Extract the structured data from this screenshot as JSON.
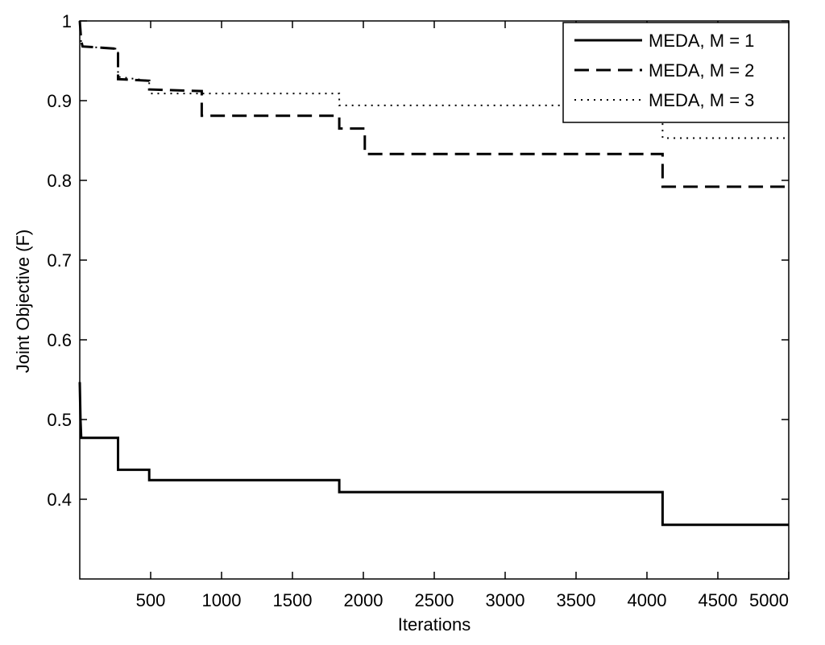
{
  "chart_data": {
    "type": "line",
    "title": "",
    "xlabel": "Iterations",
    "ylabel": "Joint Objective (F)",
    "xlim": [
      0,
      5000
    ],
    "ylim": [
      0.3,
      1.0
    ],
    "x_ticks": [
      500,
      1000,
      1500,
      2000,
      2500,
      3000,
      3500,
      4000,
      4500,
      5000
    ],
    "y_ticks": [
      0.4,
      0.5,
      0.6,
      0.7,
      0.8,
      0.9,
      1
    ],
    "x_tick_labels": [
      "500",
      "1000",
      "1500",
      "2000",
      "2500",
      "3000",
      "3500",
      "4000",
      "4500",
      "5000"
    ],
    "y_tick_labels": [
      "0.4",
      "0.5",
      "0.6",
      "0.7",
      "0.8",
      "0.9",
      "1"
    ],
    "grid": false,
    "legend_position": "top-right",
    "series": [
      {
        "name": "MEDA, M = 1",
        "style": "solid",
        "color": "#000000",
        "x": [
          0,
          5,
          10,
          270,
          270,
          490,
          490,
          1830,
          1830,
          4110,
          4110,
          5000
        ],
        "y": [
          0.547,
          0.5,
          0.477,
          0.477,
          0.437,
          0.437,
          0.424,
          0.424,
          0.409,
          0.409,
          0.368,
          0.368
        ]
      },
      {
        "name": "MEDA, M = 2",
        "style": "dashed",
        "color": "#000000",
        "x": [
          0,
          10,
          20,
          270,
          270,
          490,
          490,
          860,
          860,
          1830,
          1830,
          2010,
          2010,
          4110,
          4110,
          5000
        ],
        "y": [
          1.0,
          0.975,
          0.968,
          0.965,
          0.927,
          0.925,
          0.914,
          0.912,
          0.881,
          0.881,
          0.865,
          0.865,
          0.833,
          0.833,
          0.792,
          0.792
        ]
      },
      {
        "name": "MEDA, M = 3",
        "style": "dotted",
        "color": "#000000",
        "x": [
          0,
          10,
          20,
          270,
          270,
          490,
          490,
          1830,
          1830,
          4110,
          4110,
          5000
        ],
        "y": [
          1.0,
          0.972,
          0.968,
          0.965,
          0.93,
          0.925,
          0.909,
          0.909,
          0.894,
          0.894,
          0.853,
          0.853
        ]
      }
    ]
  }
}
